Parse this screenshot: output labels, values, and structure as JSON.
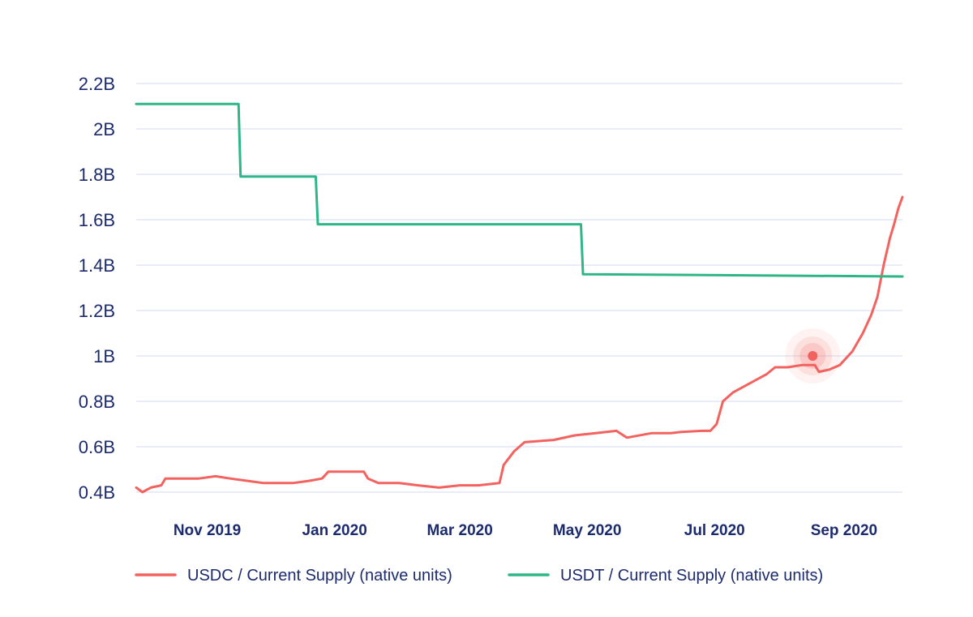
{
  "chart_data": {
    "type": "line",
    "x_axis": {
      "type": "date",
      "range": [
        "2019-09-28",
        "2020-09-29"
      ],
      "ticks": [
        {
          "date": "2019-11-01",
          "label": "Nov 2019"
        },
        {
          "date": "2020-01-01",
          "label": "Jan 2020"
        },
        {
          "date": "2020-03-01",
          "label": "Mar 2020"
        },
        {
          "date": "2020-05-01",
          "label": "May 2020"
        },
        {
          "date": "2020-07-01",
          "label": "Jul 2020"
        },
        {
          "date": "2020-09-01",
          "label": "Sep 2020"
        }
      ]
    },
    "y_axis": {
      "range": [
        0.4,
        2.2
      ],
      "unit": "B",
      "ticks": [
        {
          "value": 0.4,
          "label": "0.4B"
        },
        {
          "value": 0.6,
          "label": "0.6B"
        },
        {
          "value": 0.8,
          "label": "0.8B"
        },
        {
          "value": 1.0,
          "label": "1B"
        },
        {
          "value": 1.2,
          "label": "1.2B"
        },
        {
          "value": 1.4,
          "label": "1.4B"
        },
        {
          "value": 1.6,
          "label": "1.6B"
        },
        {
          "value": 1.8,
          "label": "1.8B"
        },
        {
          "value": 2.0,
          "label": "2B"
        },
        {
          "value": 2.2,
          "label": "2.2B"
        }
      ]
    },
    "grid": true,
    "legend_position": "bottom",
    "series": [
      {
        "name": "USDC / Current Supply (native units)",
        "color": "#f2625f",
        "points": [
          [
            "2019-09-28",
            0.42
          ],
          [
            "2019-10-01",
            0.4
          ],
          [
            "2019-10-05",
            0.42
          ],
          [
            "2019-10-10",
            0.43
          ],
          [
            "2019-10-12",
            0.46
          ],
          [
            "2019-10-20",
            0.46
          ],
          [
            "2019-10-28",
            0.46
          ],
          [
            "2019-11-05",
            0.47
          ],
          [
            "2019-11-12",
            0.46
          ],
          [
            "2019-11-20",
            0.45
          ],
          [
            "2019-11-28",
            0.44
          ],
          [
            "2019-12-05",
            0.44
          ],
          [
            "2019-12-12",
            0.44
          ],
          [
            "2019-12-20",
            0.45
          ],
          [
            "2019-12-26",
            0.46
          ],
          [
            "2019-12-29",
            0.49
          ],
          [
            "2020-01-15",
            0.49
          ],
          [
            "2020-01-17",
            0.46
          ],
          [
            "2020-01-22",
            0.44
          ],
          [
            "2020-02-01",
            0.44
          ],
          [
            "2020-02-10",
            0.43
          ],
          [
            "2020-02-20",
            0.42
          ],
          [
            "2020-03-01",
            0.43
          ],
          [
            "2020-03-10",
            0.43
          ],
          [
            "2020-03-20",
            0.44
          ],
          [
            "2020-03-22",
            0.52
          ],
          [
            "2020-03-27",
            0.58
          ],
          [
            "2020-04-01",
            0.62
          ],
          [
            "2020-04-15",
            0.63
          ],
          [
            "2020-04-25",
            0.65
          ],
          [
            "2020-05-05",
            0.66
          ],
          [
            "2020-05-15",
            0.67
          ],
          [
            "2020-05-20",
            0.64
          ],
          [
            "2020-06-01",
            0.66
          ],
          [
            "2020-06-10",
            0.66
          ],
          [
            "2020-06-15",
            0.665
          ],
          [
            "2020-06-25",
            0.67
          ],
          [
            "2020-06-29",
            0.67
          ],
          [
            "2020-07-02",
            0.7
          ],
          [
            "2020-07-05",
            0.8
          ],
          [
            "2020-07-10",
            0.84
          ],
          [
            "2020-07-20",
            0.89
          ],
          [
            "2020-07-26",
            0.92
          ],
          [
            "2020-07-30",
            0.95
          ],
          [
            "2020-08-05",
            0.95
          ],
          [
            "2020-08-12",
            0.96
          ],
          [
            "2020-08-18",
            0.96
          ],
          [
            "2020-08-20",
            0.93
          ],
          [
            "2020-08-25",
            0.94
          ],
          [
            "2020-08-30",
            0.96
          ],
          [
            "2020-09-05",
            1.02
          ],
          [
            "2020-09-10",
            1.1
          ],
          [
            "2020-09-14",
            1.18
          ],
          [
            "2020-09-17",
            1.26
          ],
          [
            "2020-09-20",
            1.4
          ],
          [
            "2020-09-23",
            1.52
          ],
          [
            "2020-09-25",
            1.58
          ],
          [
            "2020-09-27",
            1.65
          ],
          [
            "2020-09-29",
            1.7
          ]
        ]
      },
      {
        "name": "USDT / Current Supply (native units)",
        "color": "#2fb686",
        "step": true,
        "points": [
          [
            "2019-09-28",
            2.11
          ],
          [
            "2019-11-16",
            2.11
          ],
          [
            "2019-11-17",
            1.79
          ],
          [
            "2019-12-23",
            1.79
          ],
          [
            "2019-12-24",
            1.58
          ],
          [
            "2020-04-28",
            1.58
          ],
          [
            "2020-04-29",
            1.36
          ],
          [
            "2020-09-29",
            1.35
          ]
        ]
      }
    ],
    "annotations": [
      {
        "type": "highlight-dot",
        "series": "USDC / Current Supply (native units)",
        "date": "2020-08-17",
        "value": 1.0,
        "color": "#f2625f"
      }
    ]
  }
}
